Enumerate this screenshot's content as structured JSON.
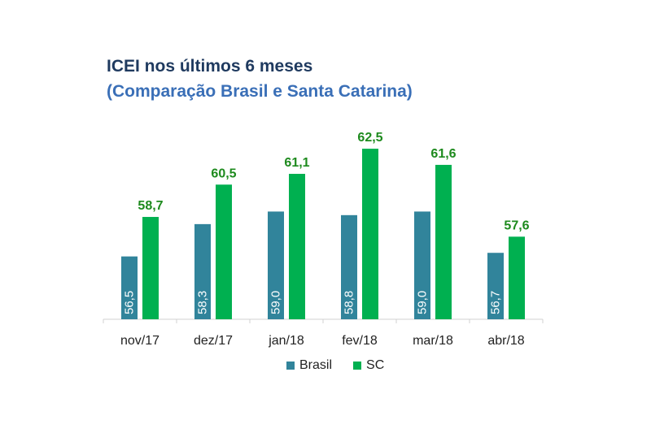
{
  "chart_data": {
    "type": "bar",
    "title": "ICEI nos últimos 6 meses",
    "subtitle": "(Comparação Brasil e Santa Catarina)",
    "categories": [
      "nov/17",
      "dez/17",
      "jan/18",
      "fev/18",
      "mar/18",
      "abr/18"
    ],
    "series": [
      {
        "name": "Brasil",
        "values": [
          56.5,
          58.3,
          59.0,
          58.8,
          59.0,
          56.7
        ],
        "labels": [
          "56,5",
          "58,3",
          "59,0",
          "58,8",
          "59,0",
          "56,7"
        ],
        "color": "#31849b"
      },
      {
        "name": "SC",
        "values": [
          58.7,
          60.5,
          61.1,
          62.5,
          61.6,
          57.6
        ],
        "labels": [
          "58,7",
          "60,5",
          "61,1",
          "62,5",
          "61,6",
          "57,6"
        ],
        "color": "#00b050"
      }
    ],
    "ylim": [
      53,
      63
    ],
    "grid": false,
    "legend": "bottom"
  }
}
